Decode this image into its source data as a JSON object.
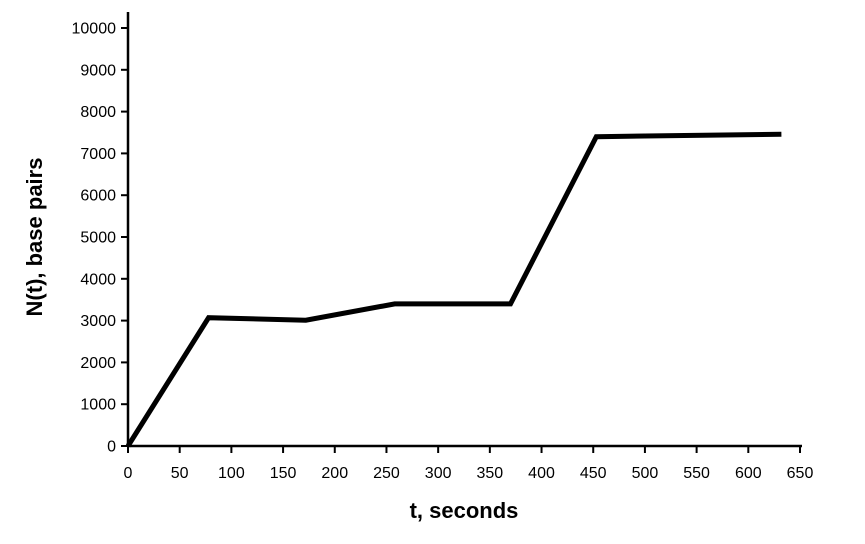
{
  "chart_data": {
    "type": "line",
    "title": "",
    "xlabel": "t, seconds",
    "ylabel": "N(t), base pairs",
    "xlim": [
      0,
      650
    ],
    "ylim": [
      0,
      10000
    ],
    "xticks": [
      0,
      50,
      100,
      150,
      200,
      250,
      300,
      350,
      400,
      450,
      500,
      550,
      600,
      650
    ],
    "yticks": [
      0,
      1000,
      2000,
      3000,
      4000,
      5000,
      6000,
      7000,
      8000,
      9000,
      10000
    ],
    "grid": false,
    "legend": "none",
    "series": [
      {
        "color": "#000000",
        "x": [
          0,
          78,
          172,
          258,
          370,
          453,
          632
        ],
        "y": [
          0,
          3070,
          3010,
          3400,
          3400,
          7400,
          7460
        ]
      }
    ]
  }
}
